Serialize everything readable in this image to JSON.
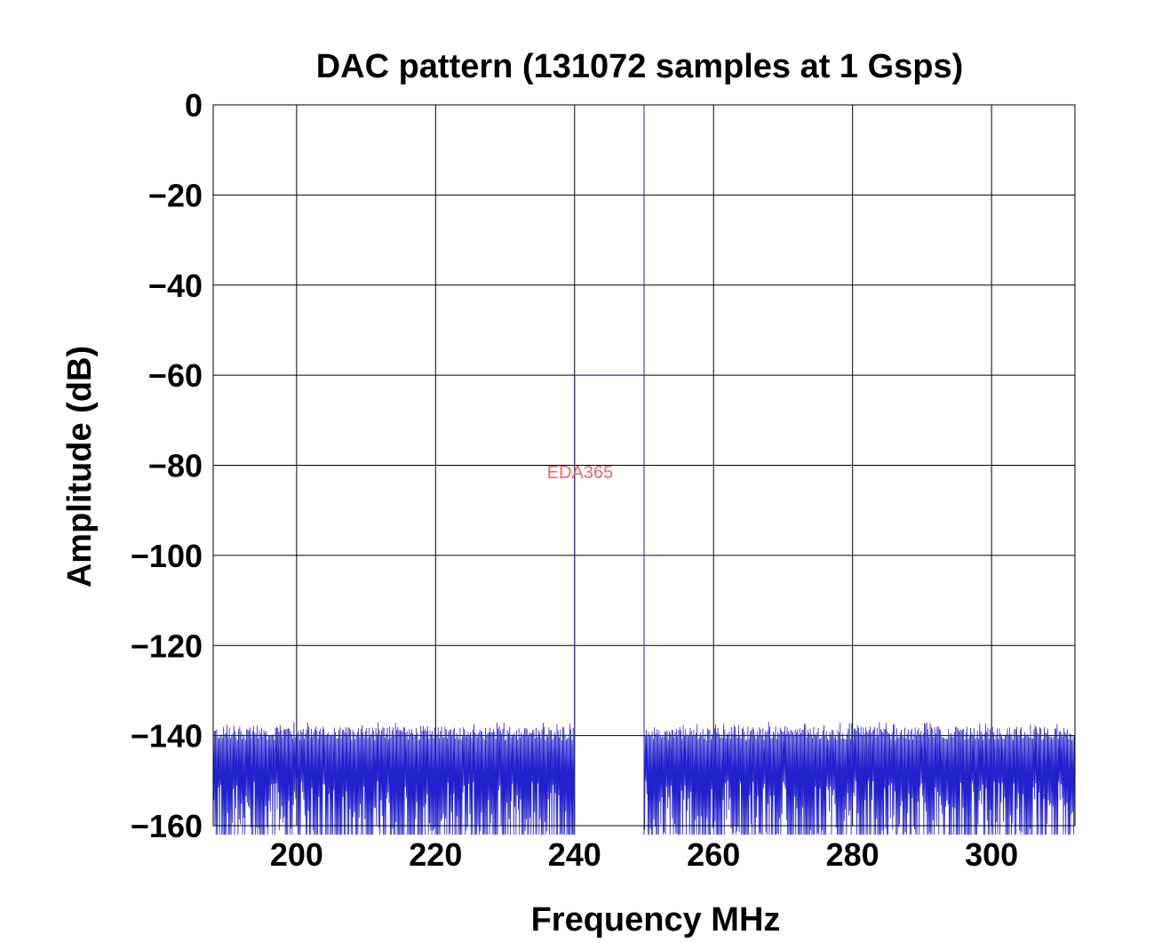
{
  "chart_data": {
    "type": "line",
    "title": "DAC pattern (131072 samples at 1 Gsps)",
    "xlabel": "Frequency MHz",
    "ylabel": "Amplitude (dB)",
    "xlim": [
      188,
      312
    ],
    "ylim": [
      -160,
      0
    ],
    "x_ticks": [
      200,
      220,
      240,
      260,
      280,
      300
    ],
    "x_tick_labels": [
      "200",
      "220",
      "240",
      "260",
      "280",
      "300"
    ],
    "y_ticks": [
      0,
      -20,
      -40,
      -60,
      -80,
      -100,
      -120,
      -140,
      -160
    ],
    "y_tick_labels": [
      "0",
      "−20",
      "−40",
      "−60",
      "−80",
      "−100",
      "−120",
      "−140",
      "−160"
    ],
    "grid": true,
    "series_color": "#2020cc",
    "watermark": "EDA365",
    "segments": [
      {
        "kind": "noise_floor",
        "x_range": [
          188,
          240
        ],
        "level_range": [
          -162,
          -137
        ]
      },
      {
        "kind": "tone_band",
        "x_range": [
          240,
          250
        ],
        "level": -60,
        "peak_x": 250,
        "peak_level": 0
      },
      {
        "kind": "noise_floor",
        "x_range": [
          250,
          312
        ],
        "level_range": [
          -162,
          -137
        ]
      }
    ]
  }
}
